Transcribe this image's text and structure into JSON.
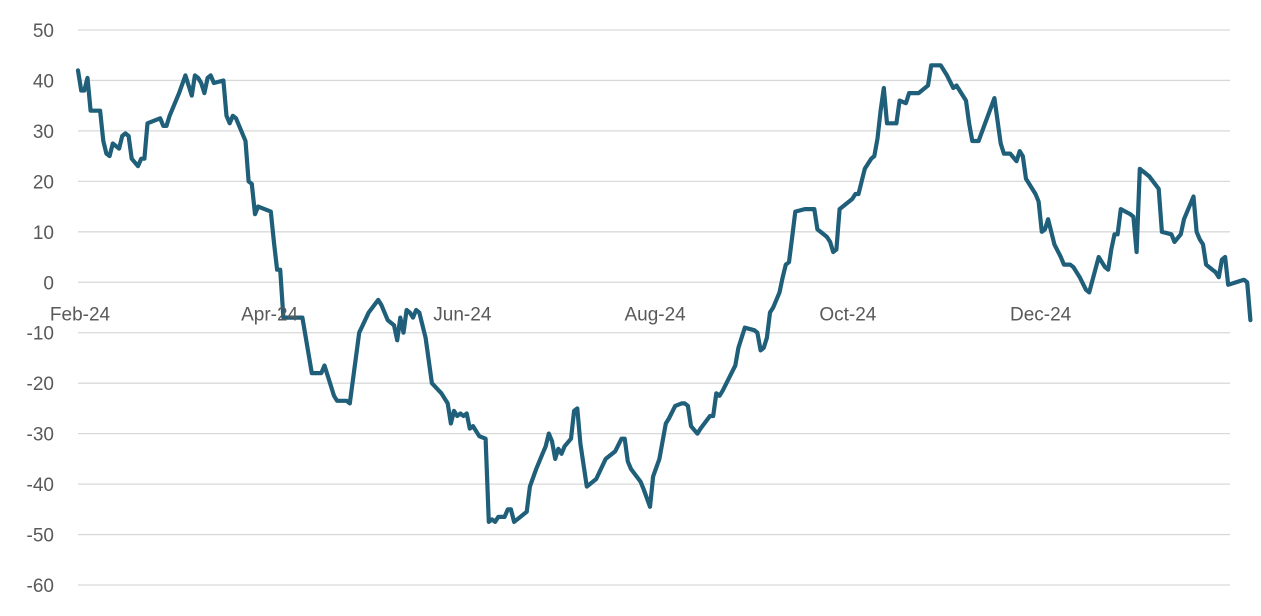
{
  "chart_data": {
    "type": "line",
    "title": "",
    "xlabel": "",
    "ylabel": "",
    "ylim": [
      -60,
      50
    ],
    "yticks": [
      50,
      40,
      30,
      20,
      10,
      0,
      -10,
      -20,
      -30,
      -40,
      -50,
      -60
    ],
    "xlim": [
      "2024-02-01",
      "2025-01-31"
    ],
    "xticks": [
      {
        "date": "2024-02-01",
        "label": "Feb-24"
      },
      {
        "date": "2024-04-01",
        "label": "Apr-24"
      },
      {
        "date": "2024-06-01",
        "label": "Jun-24"
      },
      {
        "date": "2024-08-01",
        "label": "Aug-24"
      },
      {
        "date": "2024-10-01",
        "label": "Oct-24"
      },
      {
        "date": "2024-12-01",
        "label": "Dec-24"
      }
    ],
    "grid": true,
    "legend": "none",
    "series_color": "#1f5f7a",
    "series": [
      {
        "points": [
          [
            "2024-02-01",
            42
          ],
          [
            "2024-02-02",
            38
          ],
          [
            "2024-02-03",
            38
          ],
          [
            "2024-02-04",
            40.5
          ],
          [
            "2024-02-05",
            34
          ],
          [
            "2024-02-07",
            34
          ],
          [
            "2024-02-08",
            34
          ],
          [
            "2024-02-09",
            28
          ],
          [
            "2024-02-10",
            25.5
          ],
          [
            "2024-02-11",
            25
          ],
          [
            "2024-02-12",
            27.5
          ],
          [
            "2024-02-14",
            26.5
          ],
          [
            "2024-02-15",
            29
          ],
          [
            "2024-02-16",
            29.5
          ],
          [
            "2024-02-17",
            29
          ],
          [
            "2024-02-18",
            24.5
          ],
          [
            "2024-02-20",
            23
          ],
          [
            "2024-02-21",
            24.5
          ],
          [
            "2024-02-22",
            24.5
          ],
          [
            "2024-02-23",
            31.5
          ],
          [
            "2024-02-25",
            32
          ],
          [
            "2024-02-27",
            32.5
          ],
          [
            "2024-02-28",
            31
          ],
          [
            "2024-02-29",
            31
          ],
          [
            "2024-03-01",
            33
          ],
          [
            "2024-03-04",
            37.5
          ],
          [
            "2024-03-06",
            41
          ],
          [
            "2024-03-07",
            39
          ],
          [
            "2024-03-08",
            37
          ],
          [
            "2024-03-09",
            41
          ],
          [
            "2024-03-10",
            40.5
          ],
          [
            "2024-03-11",
            39.5
          ],
          [
            "2024-03-12",
            37.5
          ],
          [
            "2024-03-13",
            40.5
          ],
          [
            "2024-03-14",
            41
          ],
          [
            "2024-03-15",
            39.5
          ],
          [
            "2024-03-18",
            40
          ],
          [
            "2024-03-19",
            33
          ],
          [
            "2024-03-20",
            31.5
          ],
          [
            "2024-03-21",
            33
          ],
          [
            "2024-03-22",
            32.5
          ],
          [
            "2024-03-25",
            28
          ],
          [
            "2024-03-26",
            20
          ],
          [
            "2024-03-27",
            19.5
          ],
          [
            "2024-03-28",
            13.5
          ],
          [
            "2024-03-29",
            15
          ],
          [
            "2024-04-02",
            14
          ],
          [
            "2024-04-03",
            8
          ],
          [
            "2024-04-04",
            2.5
          ],
          [
            "2024-04-05",
            2.5
          ],
          [
            "2024-04-06",
            -7
          ],
          [
            "2024-04-09",
            -7
          ],
          [
            "2024-04-12",
            -7
          ],
          [
            "2024-04-15",
            -18
          ],
          [
            "2024-04-18",
            -18
          ],
          [
            "2024-04-19",
            -16.5
          ],
          [
            "2024-04-22",
            -22.5
          ],
          [
            "2024-04-23",
            -23.5
          ],
          [
            "2024-04-26",
            -23.5
          ],
          [
            "2024-04-27",
            -24
          ],
          [
            "2024-04-30",
            -10
          ],
          [
            "2024-05-03",
            -6
          ],
          [
            "2024-05-06",
            -3.5
          ],
          [
            "2024-05-07",
            -4.5
          ],
          [
            "2024-05-09",
            -7.5
          ],
          [
            "2024-05-11",
            -8.5
          ],
          [
            "2024-05-12",
            -11.5
          ],
          [
            "2024-05-13",
            -7
          ],
          [
            "2024-05-14",
            -10
          ],
          [
            "2024-05-15",
            -5.5
          ],
          [
            "2024-05-16",
            -6
          ],
          [
            "2024-05-17",
            -7
          ],
          [
            "2024-05-18",
            -5.5
          ],
          [
            "2024-05-19",
            -6
          ],
          [
            "2024-05-21",
            -11
          ],
          [
            "2024-05-23",
            -20
          ],
          [
            "2024-05-26",
            -22
          ],
          [
            "2024-05-28",
            -24
          ],
          [
            "2024-05-29",
            -28
          ],
          [
            "2024-05-30",
            -25.5
          ],
          [
            "2024-05-31",
            -26.5
          ],
          [
            "2024-06-01",
            -26
          ],
          [
            "2024-06-02",
            -26.5
          ],
          [
            "2024-06-03",
            -26
          ],
          [
            "2024-06-04",
            -29
          ],
          [
            "2024-06-05",
            -28.5
          ],
          [
            "2024-06-07",
            -30.5
          ],
          [
            "2024-06-09",
            -31
          ],
          [
            "2024-06-10",
            -47.5
          ],
          [
            "2024-06-11",
            -47
          ],
          [
            "2024-06-12",
            -47.5
          ],
          [
            "2024-06-13",
            -46.5
          ],
          [
            "2024-06-15",
            -46.5
          ],
          [
            "2024-06-16",
            -45
          ],
          [
            "2024-06-17",
            -45
          ],
          [
            "2024-06-18",
            -47.5
          ],
          [
            "2024-06-20",
            -46.5
          ],
          [
            "2024-06-22",
            -45.5
          ],
          [
            "2024-06-23",
            -40.5
          ],
          [
            "2024-06-25",
            -37
          ],
          [
            "2024-06-27",
            -34
          ],
          [
            "2024-06-28",
            -32.5
          ],
          [
            "2024-06-29",
            -30
          ],
          [
            "2024-06-30",
            -31.5
          ],
          [
            "2024-07-01",
            -35
          ],
          [
            "2024-07-02",
            -33
          ],
          [
            "2024-07-03",
            -34
          ],
          [
            "2024-07-04",
            -32.5
          ],
          [
            "2024-07-06",
            -31
          ],
          [
            "2024-07-07",
            -25.5
          ],
          [
            "2024-07-08",
            -25
          ],
          [
            "2024-07-09",
            -32
          ],
          [
            "2024-07-11",
            -40.5
          ],
          [
            "2024-07-14",
            -39
          ],
          [
            "2024-07-17",
            -35
          ],
          [
            "2024-07-20",
            -33.5
          ],
          [
            "2024-07-22",
            -31
          ],
          [
            "2024-07-23",
            -31
          ],
          [
            "2024-07-24",
            -35.5
          ],
          [
            "2024-07-25",
            -37
          ],
          [
            "2024-07-28",
            -39.5
          ],
          [
            "2024-07-29",
            -41
          ],
          [
            "2024-07-31",
            -44.5
          ],
          [
            "2024-08-01",
            -38.5
          ],
          [
            "2024-08-03",
            -35
          ],
          [
            "2024-08-05",
            -28
          ],
          [
            "2024-08-06",
            -27
          ],
          [
            "2024-08-08",
            -24.5
          ],
          [
            "2024-08-10",
            -24
          ],
          [
            "2024-08-11",
            -24
          ],
          [
            "2024-08-12",
            -24.5
          ],
          [
            "2024-08-13",
            -28.5
          ],
          [
            "2024-08-15",
            -30
          ],
          [
            "2024-08-16",
            -29
          ],
          [
            "2024-08-19",
            -26.5
          ],
          [
            "2024-08-20",
            -26.5
          ],
          [
            "2024-08-21",
            -22
          ],
          [
            "2024-08-22",
            -22.5
          ],
          [
            "2024-08-23",
            -21.5
          ],
          [
            "2024-08-25",
            -19
          ],
          [
            "2024-08-27",
            -16.5
          ],
          [
            "2024-08-28",
            -13
          ],
          [
            "2024-08-30",
            -9
          ],
          [
            "2024-09-02",
            -9.5
          ],
          [
            "2024-09-03",
            -10
          ],
          [
            "2024-09-04",
            -13.5
          ],
          [
            "2024-09-05",
            -13
          ],
          [
            "2024-09-06",
            -11
          ],
          [
            "2024-09-07",
            -6
          ],
          [
            "2024-09-08",
            -5
          ],
          [
            "2024-09-10",
            -2
          ],
          [
            "2024-09-11",
            1
          ],
          [
            "2024-09-12",
            3.5
          ],
          [
            "2024-09-13",
            4
          ],
          [
            "2024-09-14",
            9
          ],
          [
            "2024-09-15",
            14
          ],
          [
            "2024-09-18",
            14.5
          ],
          [
            "2024-09-21",
            14.5
          ],
          [
            "2024-09-22",
            10.5
          ],
          [
            "2024-09-25",
            9
          ],
          [
            "2024-09-26",
            8
          ],
          [
            "2024-09-27",
            6
          ],
          [
            "2024-09-28",
            6.5
          ],
          [
            "2024-09-29",
            14.5
          ],
          [
            "2024-09-30",
            15
          ],
          [
            "2024-10-03",
            16.5
          ],
          [
            "2024-10-04",
            17.5
          ],
          [
            "2024-10-05",
            17.5
          ],
          [
            "2024-10-07",
            22.5
          ],
          [
            "2024-10-09",
            24.5
          ],
          [
            "2024-10-10",
            25
          ],
          [
            "2024-10-11",
            28.5
          ],
          [
            "2024-10-12",
            34
          ],
          [
            "2024-10-13",
            38.5
          ],
          [
            "2024-10-14",
            31.5
          ],
          [
            "2024-10-17",
            31.5
          ],
          [
            "2024-10-18",
            36
          ],
          [
            "2024-10-20",
            35.5
          ],
          [
            "2024-10-21",
            37.5
          ],
          [
            "2024-10-24",
            37.5
          ],
          [
            "2024-10-26",
            38.5
          ],
          [
            "2024-10-27",
            39
          ],
          [
            "2024-10-28",
            43
          ],
          [
            "2024-10-31",
            43
          ],
          [
            "2024-11-02",
            41
          ],
          [
            "2024-11-04",
            38.5
          ],
          [
            "2024-11-05",
            39
          ],
          [
            "2024-11-08",
            36
          ],
          [
            "2024-11-09",
            31.5
          ],
          [
            "2024-11-10",
            28
          ],
          [
            "2024-11-12",
            28
          ],
          [
            "2024-11-17",
            36.5
          ],
          [
            "2024-11-19",
            27.5
          ],
          [
            "2024-11-20",
            25.5
          ],
          [
            "2024-11-22",
            25.5
          ],
          [
            "2024-11-24",
            24
          ],
          [
            "2024-11-25",
            26
          ],
          [
            "2024-11-26",
            25
          ],
          [
            "2024-11-27",
            20.5
          ],
          [
            "2024-11-30",
            17.5
          ],
          [
            "2024-12-01",
            16
          ],
          [
            "2024-12-02",
            10
          ],
          [
            "2024-12-03",
            10.5
          ],
          [
            "2024-12-04",
            12.5
          ],
          [
            "2024-12-06",
            7.5
          ],
          [
            "2024-12-08",
            5
          ],
          [
            "2024-12-09",
            3.5
          ],
          [
            "2024-12-11",
            3.5
          ],
          [
            "2024-12-12",
            3
          ],
          [
            "2024-12-14",
            1
          ],
          [
            "2024-12-16",
            -1.5
          ],
          [
            "2024-12-17",
            -2
          ],
          [
            "2024-12-20",
            5
          ],
          [
            "2024-12-22",
            3
          ],
          [
            "2024-12-23",
            2.5
          ],
          [
            "2024-12-24",
            6.5
          ],
          [
            "2024-12-25",
            9.5
          ],
          [
            "2024-12-26",
            9.5
          ],
          [
            "2024-12-27",
            14.5
          ],
          [
            "2024-12-30",
            13.5
          ],
          [
            "2024-12-31",
            13
          ],
          [
            "2025-01-01",
            6
          ],
          [
            "2025-01-02",
            22.5
          ],
          [
            "2025-01-05",
            21
          ],
          [
            "2025-01-08",
            18.5
          ],
          [
            "2025-01-09",
            10
          ],
          [
            "2025-01-12",
            9.5
          ],
          [
            "2025-01-13",
            8
          ],
          [
            "2025-01-15",
            9.5
          ],
          [
            "2025-01-16",
            12.5
          ],
          [
            "2025-01-19",
            17
          ],
          [
            "2025-01-20",
            10
          ],
          [
            "2025-01-21",
            8.5
          ],
          [
            "2025-01-22",
            7.5
          ],
          [
            "2025-01-23",
            3.5
          ],
          [
            "2025-01-25",
            2.5
          ],
          [
            "2025-01-26",
            2
          ],
          [
            "2025-01-27",
            1
          ],
          [
            "2025-01-28",
            4.5
          ],
          [
            "2025-01-29",
            5
          ],
          [
            "2025-01-30",
            -0.5
          ],
          [
            "2025-02-04",
            0.5
          ],
          [
            "2025-02-05",
            0
          ],
          [
            "2025-02-06",
            -7.5
          ]
        ]
      }
    ]
  }
}
